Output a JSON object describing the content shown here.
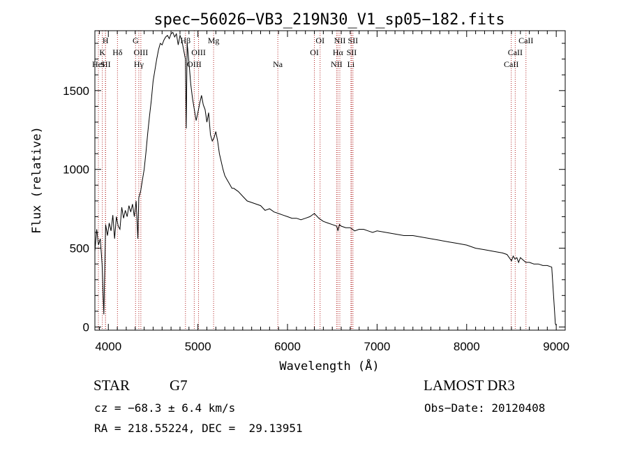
{
  "chart_data": {
    "type": "line",
    "title": "spec−56026−VB3_219N30_V1_sp05−182.fits",
    "xlabel": "Wavelength (Å)",
    "ylabel": "Flux (relative)",
    "xlim": [
      3850,
      9100
    ],
    "ylim": [
      -20,
      1880
    ],
    "x_ticks": [
      {
        "value": 4000,
        "label": "4000"
      },
      {
        "value": 5000,
        "label": "5000"
      },
      {
        "value": 6000,
        "label": "6000"
      },
      {
        "value": 7000,
        "label": "7000"
      },
      {
        "value": 8000,
        "label": "8000"
      },
      {
        "value": 9000,
        "label": "9000"
      }
    ],
    "y_ticks": [
      {
        "value": 0,
        "label": "0"
      },
      {
        "value": 500,
        "label": "500"
      },
      {
        "value": 1000,
        "label": "1000"
      },
      {
        "value": 1500,
        "label": "1500"
      }
    ],
    "series": [
      {
        "name": "flux",
        "color": "#000000",
        "x": [
          3850,
          3870,
          3890,
          3910,
          3930,
          3950,
          3970,
          3990,
          4010,
          4030,
          4050,
          4070,
          4090,
          4110,
          4130,
          4150,
          4170,
          4190,
          4210,
          4230,
          4250,
          4270,
          4290,
          4310,
          4330,
          4340,
          4360,
          4380,
          4400,
          4420,
          4440,
          4460,
          4480,
          4500,
          4520,
          4540,
          4560,
          4580,
          4600,
          4620,
          4640,
          4660,
          4680,
          4700,
          4720,
          4740,
          4760,
          4780,
          4800,
          4820,
          4840,
          4860,
          4870,
          4880,
          4900,
          4920,
          4940,
          4960,
          4980,
          5000,
          5020,
          5040,
          5060,
          5080,
          5100,
          5120,
          5140,
          5160,
          5180,
          5200,
          5220,
          5240,
          5260,
          5280,
          5300,
          5320,
          5340,
          5360,
          5380,
          5400,
          5450,
          5500,
          5550,
          5600,
          5650,
          5700,
          5750,
          5800,
          5850,
          5900,
          5950,
          6000,
          6050,
          6100,
          6150,
          6200,
          6250,
          6300,
          6350,
          6400,
          6450,
          6500,
          6550,
          6563,
          6580,
          6600,
          6650,
          6700,
          6750,
          6800,
          6850,
          6900,
          6950,
          7000,
          7100,
          7200,
          7300,
          7400,
          7500,
          7600,
          7700,
          7800,
          7900,
          8000,
          8100,
          8200,
          8300,
          8400,
          8450,
          8500,
          8520,
          8540,
          8560,
          8580,
          8600,
          8620,
          8660,
          8700,
          8750,
          8800,
          8850,
          8900,
          8950,
          8990,
          9000
        ],
        "y": [
          480,
          620,
          520,
          560,
          400,
          80,
          650,
          580,
          660,
          610,
          710,
          560,
          700,
          640,
          620,
          760,
          690,
          740,
          700,
          770,
          730,
          780,
          700,
          800,
          560,
          820,
          860,
          930,
          1000,
          1110,
          1230,
          1340,
          1440,
          1560,
          1630,
          1700,
          1760,
          1800,
          1790,
          1820,
          1840,
          1850,
          1830,
          1860,
          1870,
          1840,
          1860,
          1790,
          1850,
          1820,
          1760,
          1700,
          1260,
          1800,
          1680,
          1540,
          1450,
          1380,
          1310,
          1360,
          1420,
          1470,
          1410,
          1380,
          1300,
          1360,
          1220,
          1180,
          1200,
          1240,
          1180,
          1100,
          1050,
          1000,
          960,
          940,
          920,
          900,
          880,
          880,
          860,
          830,
          800,
          790,
          780,
          770,
          740,
          750,
          730,
          720,
          710,
          700,
          690,
          690,
          680,
          690,
          700,
          720,
          690,
          670,
          660,
          650,
          640,
          610,
          650,
          640,
          630,
          630,
          610,
          620,
          620,
          610,
          600,
          610,
          600,
          590,
          580,
          580,
          570,
          560,
          550,
          540,
          530,
          520,
          500,
          490,
          480,
          470,
          460,
          420,
          450,
          430,
          440,
          410,
          440,
          430,
          410,
          410,
          400,
          400,
          390,
          390,
          380,
          20,
          10
        ]
      }
    ],
    "lines": [
      {
        "x": 3889,
        "row": 3,
        "label": "HeI"
      },
      {
        "x": 3933,
        "row": 2,
        "label": "K"
      },
      {
        "x": 3968,
        "row": 1,
        "label": "H"
      },
      {
        "x": 3969,
        "row": 3,
        "label": "SII"
      },
      {
        "x": 4102,
        "row": 2,
        "label": "Hδ"
      },
      {
        "x": 4304,
        "row": 1,
        "label": "G"
      },
      {
        "x": 4340,
        "row": 3,
        "label": "Hγ"
      },
      {
        "x": 4363,
        "row": 2,
        "label": "OIII"
      },
      {
        "x": 4861,
        "row": 1,
        "label": "Hβ"
      },
      {
        "x": 4959,
        "row": 3,
        "label": "OIII"
      },
      {
        "x": 5007,
        "row": 2,
        "label": "OIII"
      },
      {
        "x": 5175,
        "row": 1,
        "label": "Mg"
      },
      {
        "x": 5892,
        "row": 3,
        "label": "Na"
      },
      {
        "x": 6300,
        "row": 2,
        "label": "OI"
      },
      {
        "x": 6364,
        "row": 1,
        "label": "OI"
      },
      {
        "x": 6548,
        "row": 3,
        "label": "NII"
      },
      {
        "x": 6563,
        "row": 2,
        "label": "Hα"
      },
      {
        "x": 6584,
        "row": 1,
        "label": "NII"
      },
      {
        "x": 6708,
        "row": 3,
        "label": "Li"
      },
      {
        "x": 6716,
        "row": 2,
        "label": "SII"
      },
      {
        "x": 6731,
        "row": 1,
        "label": "SII"
      },
      {
        "x": 8498,
        "row": 3,
        "label": "CaII"
      },
      {
        "x": 8542,
        "row": 2,
        "label": "CaII"
      },
      {
        "x": 8662,
        "row": 1,
        "label": "CaII"
      }
    ]
  },
  "info": {
    "object_class": "STAR",
    "subclass": "G7",
    "survey": "LAMOST DR3",
    "cz": "cz = −68.3 ± 6.4 km/s",
    "obs_date": "Obs−Date: 20120408",
    "coords": "RA = 218.55224, DEC =  29.13951"
  }
}
